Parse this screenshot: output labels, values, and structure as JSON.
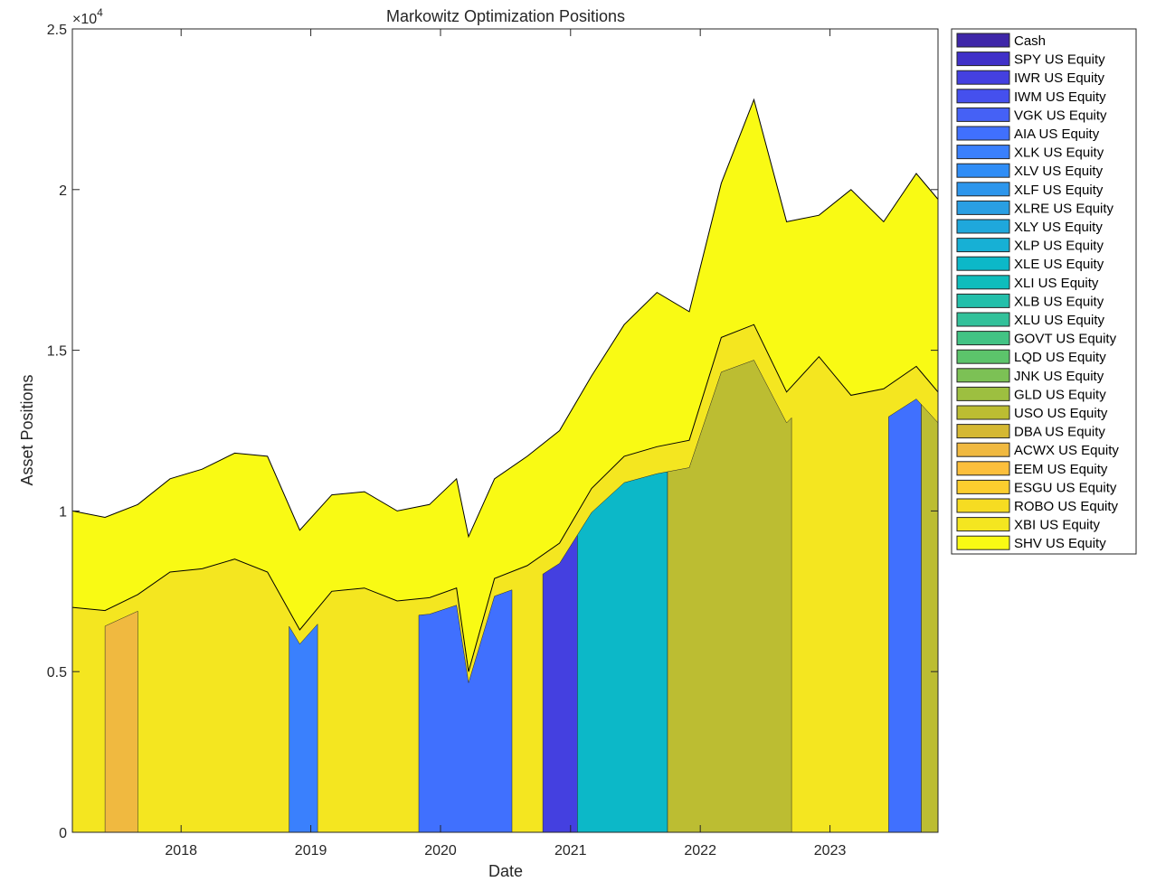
{
  "chart_data": {
    "type": "area",
    "title": "Markowitz Optimization Positions",
    "xlabel": "Date",
    "ylabel": "Asset Positions",
    "y_exponent_label": "×10^4",
    "y_exponent_base": "×10",
    "y_exponent_power": "4",
    "xlim": [
      "2017-03-01",
      "2023-11-01"
    ],
    "ylim": [
      0,
      25000
    ],
    "yticks": [
      0,
      5000,
      10000,
      15000,
      20000,
      25000
    ],
    "ytick_labels": [
      "0",
      "0.5",
      "1",
      "1.5",
      "2",
      "2.5"
    ],
    "xticks": [
      "2018-01-01",
      "2019-01-01",
      "2020-01-01",
      "2021-01-01",
      "2022-01-01",
      "2023-01-01"
    ],
    "xtick_labels": [
      "2018",
      "2019",
      "2020",
      "2021",
      "2022",
      "2023"
    ],
    "legend_position": "outside-right",
    "grid": false,
    "legend": [
      {
        "name": "Cash",
        "color": "#3e26a8"
      },
      {
        "name": "SPY US Equity",
        "color": "#4030c8"
      },
      {
        "name": "IWR US Equity",
        "color": "#4440e0"
      },
      {
        "name": "IWM US Equity",
        "color": "#4550ee"
      },
      {
        "name": "VGK US Equity",
        "color": "#4561f6"
      },
      {
        "name": "AIA US Equity",
        "color": "#4070fe"
      },
      {
        "name": "XLK US Equity",
        "color": "#3a80fd"
      },
      {
        "name": "XLV US Equity",
        "color": "#2f8df6"
      },
      {
        "name": "XLF US Equity",
        "color": "#2c96ec"
      },
      {
        "name": "XLRE US Equity",
        "color": "#2a9fe3"
      },
      {
        "name": "XLY US Equity",
        "color": "#1fa8dc"
      },
      {
        "name": "XLP US Equity",
        "color": "#17b0d5"
      },
      {
        "name": "XLE US Equity",
        "color": "#0cb8c8"
      },
      {
        "name": "XLI US Equity",
        "color": "#0ebdbc"
      },
      {
        "name": "XLB US Equity",
        "color": "#23bfaa"
      },
      {
        "name": "XLU US Equity",
        "color": "#33c19a"
      },
      {
        "name": "GOVT US Equity",
        "color": "#42c384"
      },
      {
        "name": "LQD US Equity",
        "color": "#5cc46b"
      },
      {
        "name": "JNK US Equity",
        "color": "#7cc155"
      },
      {
        "name": "GLD US Equity",
        "color": "#9dbf40"
      },
      {
        "name": "USO US Equity",
        "color": "#bcbd32"
      },
      {
        "name": "DBA US Equity",
        "color": "#d5b832"
      },
      {
        "name": "ACWX US Equity",
        "color": "#f0b940"
      },
      {
        "name": "EEM US Equity",
        "color": "#fcbf3c"
      },
      {
        "name": "ESGU US Equity",
        "color": "#fcce2e"
      },
      {
        "name": "ROBO US Equity",
        "color": "#f6dc22"
      },
      {
        "name": "XBI US Equity",
        "color": "#f4e620"
      },
      {
        "name": "SHV US Equity",
        "color": "#f9fa14"
      }
    ],
    "series": [
      {
        "name": "SHV US Equity",
        "color": "#f9fa14",
        "description": "top layer (total portfolio value)",
        "x": [
          "2017-03-01",
          "2017-06-01",
          "2017-09-01",
          "2017-12-01",
          "2018-03-01",
          "2018-06-01",
          "2018-09-01",
          "2018-12-01",
          "2019-03-01",
          "2019-06-01",
          "2019-09-01",
          "2019-12-01",
          "2020-02-15",
          "2020-03-20",
          "2020-06-01",
          "2020-09-01",
          "2020-12-01",
          "2021-03-01",
          "2021-06-01",
          "2021-09-01",
          "2021-12-01",
          "2022-03-01",
          "2022-06-01",
          "2022-09-01",
          "2022-12-01",
          "2023-03-01",
          "2023-06-01",
          "2023-09-01",
          "2023-11-01"
        ],
        "y": [
          10000,
          9800,
          10200,
          11000,
          11300,
          11800,
          11700,
          9400,
          10500,
          10600,
          10000,
          10200,
          11000,
          9200,
          11000,
          11700,
          12500,
          14200,
          15800,
          16800,
          16200,
          20200,
          22800,
          19000,
          19200,
          20000,
          19000,
          20500,
          19700
        ]
      },
      {
        "name": "XBI US Equity",
        "color": "#f4e620",
        "description": "lower boundary of top layer",
        "x": [
          "2017-03-01",
          "2017-06-01",
          "2017-09-01",
          "2017-12-01",
          "2018-03-01",
          "2018-06-01",
          "2018-09-01",
          "2018-12-01",
          "2019-03-01",
          "2019-06-01",
          "2019-09-01",
          "2019-12-01",
          "2020-02-15",
          "2020-03-20",
          "2020-06-01",
          "2020-09-01",
          "2020-12-01",
          "2021-03-01",
          "2021-06-01",
          "2021-09-01",
          "2021-12-01",
          "2022-03-01",
          "2022-06-01",
          "2022-09-01",
          "2022-12-01",
          "2023-03-01",
          "2023-06-01",
          "2023-09-01",
          "2023-11-01"
        ],
        "y": [
          7000,
          6900,
          7400,
          8100,
          8200,
          8500,
          8100,
          6300,
          7500,
          7600,
          7200,
          7300,
          7600,
          5000,
          7900,
          8300,
          9000,
          10700,
          11700,
          12000,
          12200,
          15400,
          15800,
          13700,
          14800,
          13600,
          13800,
          14500,
          13700
        ]
      }
    ],
    "segments": [
      {
        "asset": "ACWX US Equity",
        "start": "2017-06-01",
        "end": "2017-09-01",
        "color": "#f0b940"
      },
      {
        "asset": "XLK US Equity",
        "start": "2018-11-01",
        "end": "2019-01-20",
        "color": "#3a80fd"
      },
      {
        "asset": "XLK US Equity",
        "start": "2019-11-01",
        "end": "2020-07-20",
        "color": "#4070fe"
      },
      {
        "asset": "SPY US Equity",
        "start": "2020-10-15",
        "end": "2021-01-20",
        "color": "#4440e0"
      },
      {
        "asset": "XLE US Equity",
        "start": "2021-01-20",
        "end": "2021-10-01",
        "color": "#0cb8c8"
      },
      {
        "asset": "USO US Equity",
        "start": "2021-10-01",
        "end": "2022-09-15",
        "color": "#bcbd32"
      },
      {
        "asset": "VGK US Equity",
        "start": "2023-06-15",
        "end": "2023-09-15",
        "color": "#4070fe"
      },
      {
        "asset": "USO US Equity",
        "start": "2023-09-15",
        "end": "2023-11-01",
        "color": "#bcbd32"
      }
    ]
  }
}
